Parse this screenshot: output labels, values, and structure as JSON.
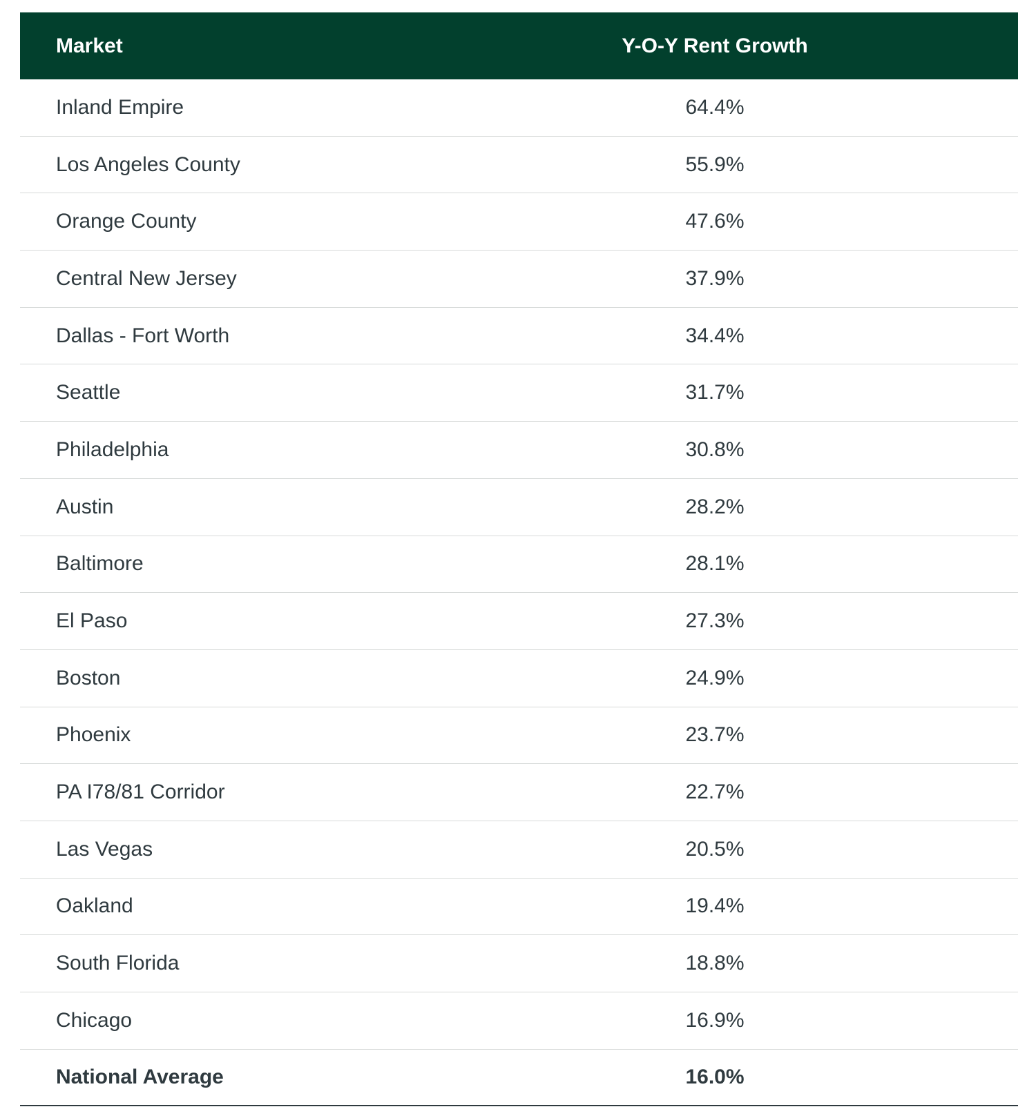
{
  "table": {
    "headers": {
      "market": "Market",
      "growth": "Y-O-Y Rent Growth"
    },
    "rows": [
      {
        "market": "Inland Empire",
        "growth": "64.4%"
      },
      {
        "market": "Los Angeles County",
        "growth": "55.9%"
      },
      {
        "market": "Orange County",
        "growth": "47.6%"
      },
      {
        "market": "Central New Jersey",
        "growth": "37.9%"
      },
      {
        "market": "Dallas - Fort Worth",
        "growth": "34.4%"
      },
      {
        "market": "Seattle",
        "growth": "31.7%"
      },
      {
        "market": "Philadelphia",
        "growth": "30.8%"
      },
      {
        "market": "Austin",
        "growth": "28.2%"
      },
      {
        "market": "Baltimore",
        "growth": "28.1%"
      },
      {
        "market": "El Paso",
        "growth": "27.3%"
      },
      {
        "market": "Boston",
        "growth": "24.9%"
      },
      {
        "market": "Phoenix",
        "growth": "23.7%"
      },
      {
        "market": "PA I78/81 Corridor",
        "growth": "22.7%"
      },
      {
        "market": "Las Vegas",
        "growth": "20.5%"
      },
      {
        "market": "Oakland",
        "growth": "19.4%"
      },
      {
        "market": "South Florida",
        "growth": "18.8%"
      },
      {
        "market": "Chicago",
        "growth": "16.9%"
      }
    ],
    "total": {
      "market": "National Average",
      "growth": "16.0%"
    }
  },
  "colors": {
    "header_bg": "#02402d",
    "header_text": "#ffffff",
    "body_text": "#2f3a3f",
    "row_divider": "#d6d9d8"
  }
}
